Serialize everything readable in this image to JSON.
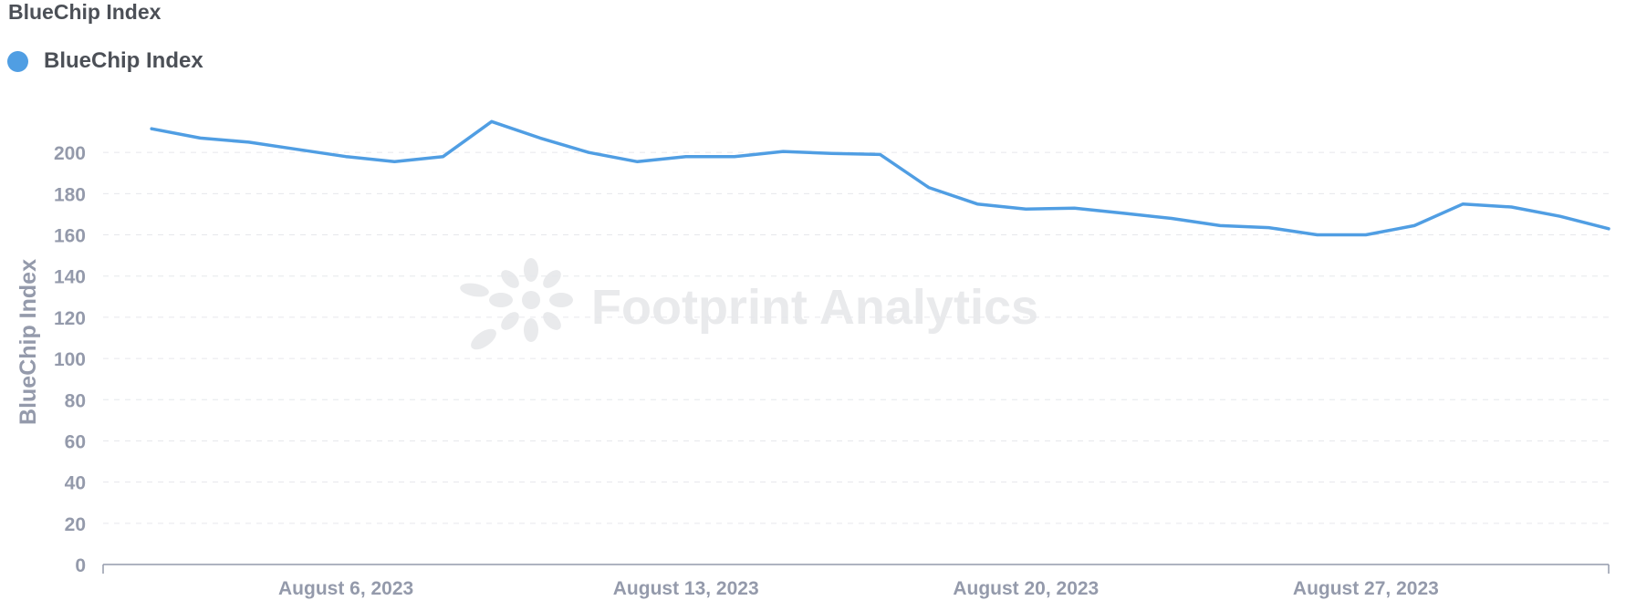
{
  "title": "BlueChip Index",
  "legend": {
    "label": "BlueChip Index",
    "color": "#509ee3"
  },
  "watermark": "Footprint Analytics",
  "chart_data": {
    "type": "line",
    "title": "BlueChip Index",
    "xlabel": "",
    "ylabel": "BlueChip Index",
    "ylim": [
      0,
      220
    ],
    "yticks": [
      0,
      20,
      40,
      60,
      80,
      100,
      120,
      140,
      160,
      180,
      200
    ],
    "xlim": [
      "2023-08-01",
      "2023-09-01"
    ],
    "xticks": [
      {
        "date": "2023-08-06",
        "label": "August 6, 2023"
      },
      {
        "date": "2023-08-13",
        "label": "August 13, 2023"
      },
      {
        "date": "2023-08-20",
        "label": "August 20, 2023"
      },
      {
        "date": "2023-08-27",
        "label": "August 27, 2023"
      }
    ],
    "grid": true,
    "legend_position": "top-left",
    "series": [
      {
        "name": "BlueChip Index",
        "color": "#509ee3",
        "x": [
          "2023-08-02",
          "2023-08-03",
          "2023-08-04",
          "2023-08-05",
          "2023-08-06",
          "2023-08-07",
          "2023-08-08",
          "2023-08-09",
          "2023-08-10",
          "2023-08-11",
          "2023-08-12",
          "2023-08-13",
          "2023-08-14",
          "2023-08-15",
          "2023-08-16",
          "2023-08-17",
          "2023-08-18",
          "2023-08-19",
          "2023-08-20",
          "2023-08-21",
          "2023-08-22",
          "2023-08-23",
          "2023-08-24",
          "2023-08-25",
          "2023-08-26",
          "2023-08-27",
          "2023-08-28",
          "2023-08-29",
          "2023-08-30",
          "2023-08-31",
          "2023-09-01"
        ],
        "values": [
          211.5,
          207,
          205,
          201.5,
          198,
          195.5,
          198,
          215,
          207,
          200,
          195.5,
          198,
          198,
          200.5,
          199.5,
          199,
          183,
          175,
          172.5,
          173,
          170.5,
          168,
          164.5,
          163.5,
          160,
          160,
          164.5,
          175,
          173.5,
          169,
          163
        ]
      }
    ]
  }
}
